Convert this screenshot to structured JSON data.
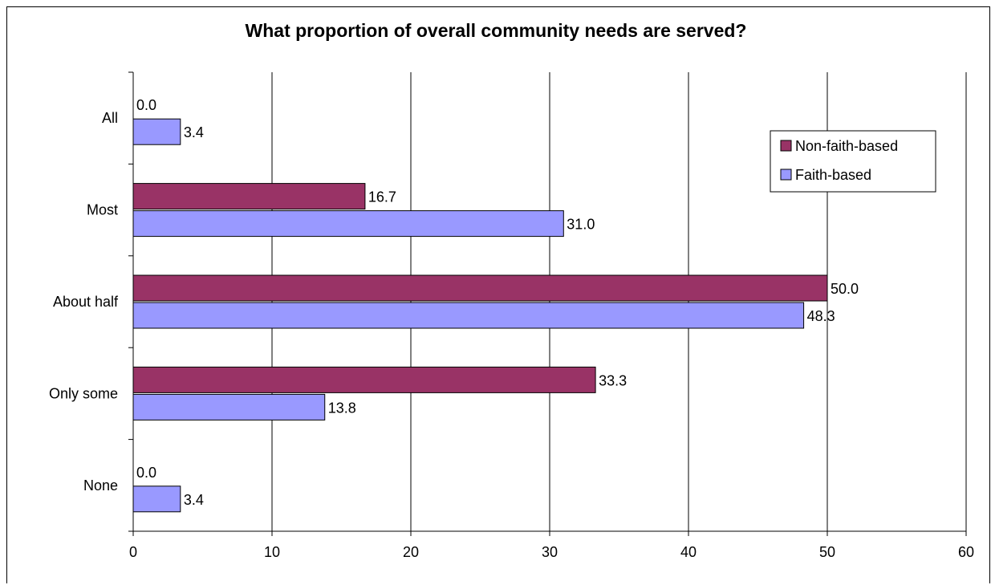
{
  "chart_data": {
    "type": "bar",
    "orientation": "horizontal",
    "title": "What proportion of overall community needs are served?",
    "categories": [
      "All",
      "Most",
      "About half",
      "Only some",
      "None"
    ],
    "series": [
      {
        "name": "Non-faith-based",
        "values": [
          0.0,
          16.7,
          50.0,
          33.3,
          0.0
        ],
        "color": "#993366"
      },
      {
        "name": "Faith-based",
        "values": [
          3.4,
          31.0,
          48.3,
          13.8,
          3.4
        ],
        "color": "#9999ff"
      }
    ],
    "xlim": [
      0,
      60
    ],
    "x_ticks": [
      "0",
      "10",
      "20",
      "30",
      "40",
      "50",
      "60"
    ],
    "grid": "vertical",
    "legend_position": "top-right",
    "data_labels": true
  }
}
